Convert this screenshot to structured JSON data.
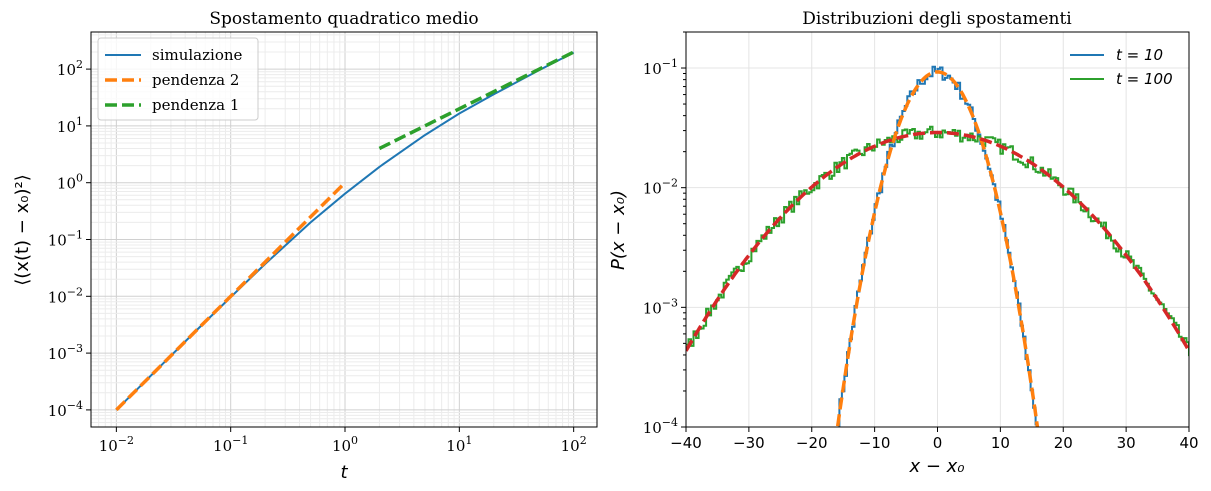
{
  "chart_data": [
    {
      "type": "line",
      "title": "Spostamento quadratico medio",
      "xlabel": "t",
      "ylabel": "⟨(x(t) − x₀)²⟩",
      "xscale": "log",
      "yscale": "log",
      "xlim": [
        0.006,
        160
      ],
      "ylim": [
        5e-05,
        450
      ],
      "grid": "on (major and minor)",
      "legend_position": "top-left",
      "x_ticks": [
        {
          "value": 0.01,
          "mant": "10",
          "exp": "−2"
        },
        {
          "value": 0.1,
          "mant": "10",
          "exp": "−1"
        },
        {
          "value": 1,
          "mant": "10",
          "exp": "0"
        },
        {
          "value": 10,
          "mant": "10",
          "exp": "1"
        },
        {
          "value": 100,
          "mant": "10",
          "exp": "2"
        }
      ],
      "y_ticks": [
        {
          "value": 0.0001,
          "mant": "10",
          "exp": "−4"
        },
        {
          "value": 0.001,
          "mant": "10",
          "exp": "−3"
        },
        {
          "value": 0.01,
          "mant": "10",
          "exp": "−2"
        },
        {
          "value": 0.1,
          "mant": "10",
          "exp": "−1"
        },
        {
          "value": 1,
          "mant": "10",
          "exp": "0"
        },
        {
          "value": 10,
          "mant": "10",
          "exp": "1"
        },
        {
          "value": 100,
          "mant": "10",
          "exp": "2"
        }
      ],
      "series": [
        {
          "name": "simulazione",
          "color": "#1f77b4",
          "style": "solid",
          "x": [
            0.01,
            0.02,
            0.05,
            0.1,
            0.2,
            0.5,
            1,
            2,
            5,
            10,
            20,
            50,
            100
          ],
          "y": [
            0.0001,
            0.0004,
            0.0025,
            0.0097,
            0.037,
            0.2,
            0.64,
            1.9,
            6.9,
            16.5,
            36,
            96,
            196
          ]
        },
        {
          "name": "pendenza 2",
          "color": "#ff7f0e",
          "style": "dashed",
          "x": [
            0.01,
            1
          ],
          "y": [
            0.0001,
            1
          ]
        },
        {
          "name": "pendenza 1",
          "color": "#2ca02c",
          "style": "dashed",
          "x": [
            2,
            100
          ],
          "y": [
            4,
            200
          ]
        }
      ]
    },
    {
      "type": "line",
      "title": "Distribuzioni degli spostamenti",
      "xlabel": "x − x₀",
      "ylabel": "P(x − x₀)",
      "yscale": "log",
      "xlim": [
        -40,
        40
      ],
      "ylim": [
        0.0001,
        0.2
      ],
      "grid": "on",
      "legend_position": "top-right",
      "x_ticks": [
        "−40",
        "−30",
        "−20",
        "−10",
        "0",
        "10",
        "20",
        "30",
        "40"
      ],
      "y_ticks": [
        {
          "value": 0.0001,
          "mant": "10",
          "exp": "−4"
        },
        {
          "value": 0.001,
          "mant": "10",
          "exp": "−3"
        },
        {
          "value": 0.01,
          "mant": "10",
          "exp": "−2"
        },
        {
          "value": 0.1,
          "mant": "10",
          "exp": "−1"
        }
      ],
      "series": [
        {
          "name": "t = 10",
          "color": "#1f77b4",
          "style": "step-histogram",
          "sigma": 4.3,
          "x_range": [
            -16,
            16
          ]
        },
        {
          "name": "t = 100",
          "color": "#2ca02c",
          "style": "step-histogram",
          "sigma": 13.8,
          "x_range": [
            -40,
            40
          ]
        },
        {
          "color": "#ff7f0e",
          "style": "dashed",
          "fit": "gaussian",
          "sigma": 4.3
        },
        {
          "color": "#d62728",
          "style": "dashed",
          "fit": "gaussian",
          "sigma": 13.8
        }
      ]
    }
  ]
}
